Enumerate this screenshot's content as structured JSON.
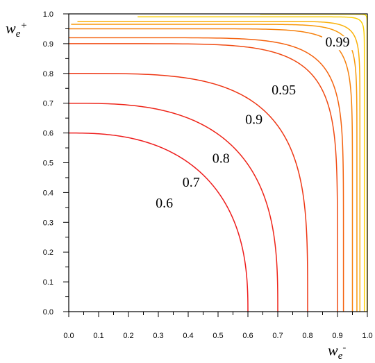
{
  "chart_data": {
    "type": "contour",
    "xlabel": "w",
    "xlabel_subscript": "e",
    "xlabel_superscript": "-",
    "ylabel": "w",
    "ylabel_subscript": "e",
    "ylabel_superscript": "+",
    "xlim": [
      0.0,
      1.0
    ],
    "ylim": [
      0.0,
      1.0
    ],
    "xticks": [
      0.0,
      0.1,
      0.2,
      0.3,
      0.4,
      0.5,
      0.6,
      0.7,
      0.8,
      0.9,
      1.0
    ],
    "yticks": [
      0.0,
      0.1,
      0.2,
      0.3,
      0.4,
      0.5,
      0.6,
      0.7,
      0.8,
      0.9,
      1.0
    ],
    "xtick_labels": [
      "0.0",
      "0.1",
      "0.2",
      "0.3",
      "0.4",
      "0.5",
      "0.6",
      "0.7",
      "0.8",
      "0.9",
      "1.0"
    ],
    "ytick_labels": [
      "0.0",
      "0.1",
      "0.2",
      "0.3",
      "0.4",
      "0.5",
      "0.6",
      "0.7",
      "0.8",
      "0.9",
      "1.0"
    ],
    "grid": false,
    "levels": [
      {
        "value": 0.6,
        "label": "0.6",
        "color": "#ee1c1c",
        "labeled": true,
        "label_at": [
          0.32,
          0.35
        ]
      },
      {
        "value": 0.7,
        "label": "0.7",
        "color": "#ee2418",
        "labeled": true,
        "label_at": [
          0.41,
          0.42
        ]
      },
      {
        "value": 0.8,
        "label": "0.8",
        "color": "#ee3614",
        "labeled": true,
        "label_at": [
          0.51,
          0.5
        ]
      },
      {
        "value": 0.9,
        "label": "0.9",
        "color": "#f04a12",
        "labeled": true,
        "label_at": [
          0.62,
          0.63
        ]
      },
      {
        "value": 0.92,
        "label": "",
        "color": "#f4620e",
        "labeled": false
      },
      {
        "value": 0.95,
        "label": "0.95",
        "color": "#f6800c",
        "labeled": true,
        "label_at": [
          0.72,
          0.73
        ]
      },
      {
        "value": 0.965,
        "label": "",
        "color": "#f8980a",
        "labeled": false
      },
      {
        "value": 0.975,
        "label": "",
        "color": "#fab008",
        "labeled": false
      },
      {
        "value": 0.99,
        "label": "0.99",
        "color": "#fcd006",
        "labeled": true,
        "label_at": [
          0.9,
          0.89
        ]
      },
      {
        "value": 0.999,
        "label": "",
        "color": "#ffe600",
        "labeled": false
      }
    ]
  }
}
